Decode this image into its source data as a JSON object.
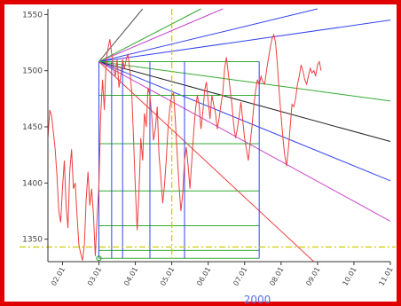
{
  "chart_data": {
    "type": "line",
    "title": "",
    "xlabel": "2000",
    "ylabel": "",
    "x_range": [
      1.6,
      11.0
    ],
    "y_range": [
      1330,
      1555
    ],
    "y_ticks": [
      1350,
      1400,
      1450,
      1500,
      1550
    ],
    "x_ticks": [
      {
        "value": 2,
        "label": "02.01"
      },
      {
        "value": 3,
        "label": "03.01"
      },
      {
        "value": 4,
        "label": "04.01"
      },
      {
        "value": 5,
        "label": "05.01"
      },
      {
        "value": 6,
        "label": "06.01"
      },
      {
        "value": 7,
        "label": "07.01"
      },
      {
        "value": 8,
        "label": "08.01"
      },
      {
        "value": 9,
        "label": "09.01"
      },
      {
        "value": 10,
        "label": "10.01"
      },
      {
        "value": 11,
        "label": "11.01"
      }
    ],
    "grid": false,
    "series": [
      {
        "color": "#ee4040",
        "x": [
          1.6,
          1.65,
          1.7,
          1.75,
          1.8,
          1.85,
          1.9,
          1.95,
          2.0,
          2.05,
          2.1,
          2.15,
          2.2,
          2.25,
          2.3,
          2.35,
          2.4,
          2.45,
          2.5,
          2.55,
          2.6,
          2.65,
          2.7,
          2.75,
          2.8,
          2.85,
          2.9,
          2.95,
          3.0,
          3.05,
          3.1,
          3.15,
          3.2,
          3.25,
          3.3,
          3.35,
          3.4,
          3.45,
          3.5,
          3.55,
          3.6,
          3.65,
          3.7,
          3.75,
          3.8,
          3.85,
          3.9,
          3.95,
          4.0,
          4.05,
          4.1,
          4.15,
          4.2,
          4.25,
          4.3,
          4.35,
          4.4,
          4.45,
          4.5,
          4.55,
          4.6,
          4.65,
          4.7,
          4.75,
          4.8,
          4.85,
          4.9,
          4.95,
          5.0,
          5.05,
          5.1,
          5.15,
          5.2,
          5.25,
          5.3,
          5.35,
          5.4,
          5.45,
          5.5,
          5.55,
          5.6,
          5.65,
          5.7,
          5.75,
          5.8,
          5.85,
          5.9,
          5.95,
          6.0,
          6.05,
          6.1,
          6.15,
          6.2,
          6.25,
          6.3,
          6.35,
          6.4,
          6.45,
          6.5,
          6.55,
          6.6,
          6.65,
          6.7,
          6.75,
          6.8,
          6.85,
          6.9,
          6.95,
          7.0,
          7.05,
          7.1,
          7.15,
          7.2,
          7.25,
          7.3,
          7.35,
          7.4,
          7.45,
          7.5,
          7.55,
          7.6,
          7.65,
          7.7,
          7.75,
          7.8,
          7.85,
          7.9,
          7.95,
          8.0,
          8.05,
          8.1,
          8.15,
          8.2,
          8.25,
          8.3,
          8.35,
          8.4,
          8.45,
          8.5,
          8.55,
          8.6,
          8.65,
          8.7,
          8.75,
          8.8,
          8.85,
          8.9,
          8.95,
          9.0,
          9.05,
          9.1
        ],
        "y": [
          1440,
          1465,
          1460,
          1445,
          1430,
          1405,
          1375,
          1365,
          1395,
          1420,
          1380,
          1360,
          1410,
          1430,
          1395,
          1400,
          1370,
          1345,
          1337,
          1331,
          1345,
          1385,
          1410,
          1380,
          1395,
          1372,
          1335,
          1368,
          1398,
          1460,
          1492,
          1465,
          1510,
          1520,
          1528,
          1515,
          1502,
          1495,
          1510,
          1485,
          1495,
          1510,
          1502,
          1510,
          1515,
          1500,
          1482,
          1440,
          1395,
          1358,
          1392,
          1440,
          1420,
          1462,
          1450,
          1485,
          1478,
          1460,
          1438,
          1448,
          1468,
          1425,
          1405,
          1382,
          1398,
          1422,
          1450,
          1468,
          1478,
          1480,
          1455,
          1425,
          1398,
          1375,
          1390,
          1420,
          1432,
          1415,
          1395,
          1420,
          1445,
          1465,
          1478,
          1470,
          1448,
          1462,
          1482,
          1490,
          1473,
          1457,
          1478,
          1470,
          1462,
          1448,
          1458,
          1470,
          1480,
          1502,
          1512,
          1498,
          1484,
          1470,
          1452,
          1440,
          1448,
          1460,
          1472,
          1455,
          1440,
          1430,
          1420,
          1435,
          1450,
          1468,
          1482,
          1492,
          1487,
          1495,
          1490,
          1488,
          1500,
          1510,
          1520,
          1528,
          1532,
          1525,
          1505,
          1480,
          1460,
          1440,
          1425,
          1415,
          1430,
          1450,
          1470,
          1468,
          1475,
          1488,
          1495,
          1505,
          1500,
          1492,
          1488,
          1495,
          1502,
          1498,
          1500,
          1495,
          1505,
          1508,
          1500
        ]
      }
    ],
    "fan_lines": [
      {
        "color": "#555555",
        "x1": 3.0,
        "y1": 1508,
        "x2": 4.2,
        "y2": 1555
      },
      {
        "color": "#cc44cc",
        "x1": 3.0,
        "y1": 1508,
        "x2": 6.4,
        "y2": 1555
      },
      {
        "color": "#33aa33",
        "x1": 3.0,
        "y1": 1508,
        "x2": 5.8,
        "y2": 1555
      },
      {
        "color": "#3344ee",
        "x1": 3.0,
        "y1": 1508,
        "x2": 9.0,
        "y2": 1555
      },
      {
        "color": "#3344ee",
        "x1": 3.0,
        "y1": 1508,
        "x2": 11.0,
        "y2": 1545
      },
      {
        "color": "#33aa33",
        "x1": 3.0,
        "y1": 1508,
        "x2": 11.0,
        "y2": 1473
      },
      {
        "color": "#222222",
        "x1": 3.0,
        "y1": 1508,
        "x2": 11.0,
        "y2": 1437
      },
      {
        "color": "#3344ee",
        "x1": 3.0,
        "y1": 1508,
        "x2": 11.0,
        "y2": 1402
      },
      {
        "color": "#cc44cc",
        "x1": 3.0,
        "y1": 1508,
        "x2": 11.0,
        "y2": 1366
      },
      {
        "color": "#ee4040",
        "x1": 3.0,
        "y1": 1508,
        "x2": 8.9,
        "y2": 1330
      }
    ],
    "grid_box": {
      "x_left": 3.0,
      "x_right": 7.4,
      "y_bottom": 1333,
      "y_top": 1508,
      "vlines": [
        3.0,
        3.35,
        3.65,
        4.4,
        5.35,
        7.4
      ],
      "vline_color": "#3344ee",
      "hlines": [
        1333,
        1340,
        1362,
        1393,
        1435,
        1478,
        1508
      ],
      "hline_color": "#33aa33"
    },
    "annotations": [
      {
        "type": "vline",
        "x": 5.0,
        "color": "#cccc00",
        "style": "dashdot"
      },
      {
        "type": "hline",
        "y": 1343,
        "color": "#cccc00",
        "style": "dashdot"
      },
      {
        "type": "marker",
        "x": 3.0,
        "y": 1333,
        "color": "#33aa33"
      }
    ]
  }
}
